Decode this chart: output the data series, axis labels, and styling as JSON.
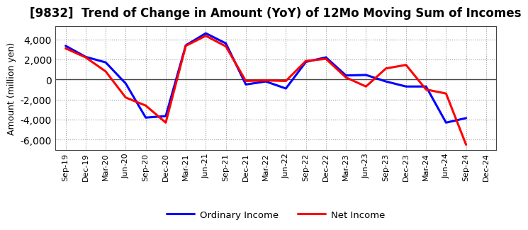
{
  "title": "[9832]  Trend of Change in Amount (YoY) of 12Mo Moving Sum of Incomes",
  "ylabel": "Amount (million yen)",
  "background_color": "#ffffff",
  "grid_color": "#999999",
  "x_labels": [
    "Sep-19",
    "Dec-19",
    "Mar-20",
    "Jun-20",
    "Sep-20",
    "Dec-20",
    "Mar-21",
    "Jun-21",
    "Sep-21",
    "Dec-21",
    "Mar-22",
    "Jun-22",
    "Sep-22",
    "Dec-22",
    "Mar-23",
    "Jun-23",
    "Sep-23",
    "Dec-23",
    "Mar-24",
    "Jun-24",
    "Sep-24",
    "Dec-24"
  ],
  "ordinary_income": [
    3350,
    2250,
    1700,
    -400,
    -3800,
    -3650,
    3400,
    4600,
    3600,
    -500,
    -200,
    -900,
    1750,
    2200,
    400,
    450,
    -200,
    -700,
    -700,
    -4300,
    -3850,
    null
  ],
  "net_income": [
    3100,
    2200,
    800,
    -1800,
    -2600,
    -4300,
    3350,
    4350,
    3300,
    -150,
    -100,
    -150,
    1850,
    2050,
    200,
    -700,
    1100,
    1450,
    -1000,
    -1400,
    -6500,
    null
  ],
  "ordinary_income_color": "#0000ff",
  "net_income_color": "#ff0000",
  "ylim": [
    -7000,
    5300
  ],
  "yticks": [
    -6000,
    -4000,
    -2000,
    0,
    2000,
    4000
  ],
  "line_width": 2.2,
  "legend_labels": [
    "Ordinary Income",
    "Net Income"
  ],
  "title_fontsize": 12,
  "tick_fontsize": 8,
  "ylabel_fontsize": 9
}
